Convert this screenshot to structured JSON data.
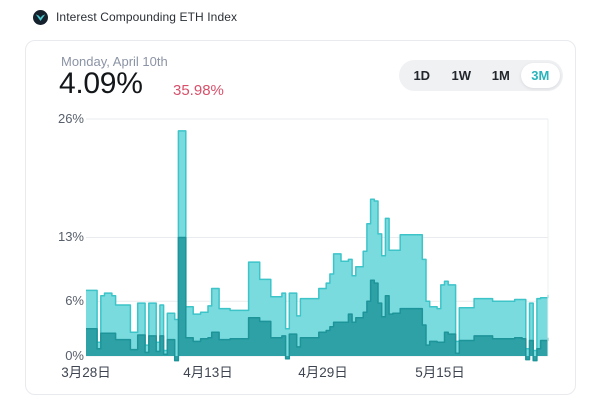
{
  "header": {
    "title": "Interest Compounding ETH Index",
    "logo_icon": "token-logo-dark-circle-teal-wings"
  },
  "card": {
    "date_label": "Monday, April 10th",
    "value": "4.09%",
    "change": "35.98%",
    "range_selector": {
      "buttons": [
        {
          "label": "1D",
          "active": false
        },
        {
          "label": "1W",
          "active": false
        },
        {
          "label": "1M",
          "active": false
        },
        {
          "label": "3M",
          "active": true
        }
      ]
    }
  },
  "colors": {
    "accent_teal": "#29b3ba",
    "change_red": "#d8506a",
    "logo_bg": "#15222e",
    "logo_glyph": "#4cc7d0"
  },
  "chart_data": {
    "type": "area",
    "title": "Interest Compounding ETH Index APY, 3M range",
    "x_ticks": [
      "3月28日",
      "4月13日",
      "4月29日",
      "5月15日"
    ],
    "x_tick_days": [
      0,
      16,
      32,
      48
    ],
    "x_range_days": 62,
    "y_ticks": [
      "26%",
      "13%",
      "6%",
      "0%"
    ],
    "ylim": [
      0,
      26
    ],
    "gridlines": [
      26,
      13,
      6,
      0
    ],
    "grid_color": "#e9ebee",
    "edge_color": "#edeff1",
    "legend": "none",
    "series": [
      {
        "name": "apy-total",
        "fill": "#79dbde",
        "stroke": "#3cc4c9",
        "values": [
          7.2,
          7.2,
          7.2,
          1.5,
          6.6,
          6.9,
          6.9,
          6.6,
          5.6,
          5.6,
          5.6,
          5.6,
          2.6,
          2.6,
          5.8,
          5.8,
          1.2,
          5.8,
          5.8,
          1.5,
          5.6,
          0.6,
          4.7,
          4.7,
          4.0,
          24.7,
          24.7,
          5.4,
          5.4,
          4.6,
          4.6,
          4.8,
          4.8,
          5.5,
          7.4,
          7.4,
          5.2,
          5.2,
          5.2,
          5.0,
          5.0,
          5.0,
          5.0,
          5.0,
          10.3,
          10.3,
          10.3,
          8.4,
          8.4,
          8.4,
          6.5,
          6.5,
          6.5,
          6.9,
          3.0,
          6.9,
          6.9,
          4.4,
          6.3,
          6.3,
          6.3,
          6.3,
          6.3,
          7.4,
          7.4,
          8.0,
          9.0,
          11.2,
          11.2,
          10.4,
          10.4,
          10.6,
          8.8,
          9.8,
          9.8,
          11.5,
          14.5,
          17.2,
          17.0,
          13.4,
          11.0,
          15.1,
          11.6,
          11.6,
          11.6,
          13.3,
          13.3,
          13.3,
          13.3,
          13.3,
          13.3,
          10.6,
          6.0,
          5.4,
          5.4,
          5.2,
          7.8,
          8.2,
          7.8,
          7.8,
          1.6,
          5.3,
          5.3,
          5.3,
          5.3,
          6.3,
          6.3,
          6.3,
          6.3,
          6.3,
          6.0,
          6.0,
          6.0,
          6.0,
          6.0,
          6.0,
          6.2,
          6.2,
          6.2,
          0.8,
          5.8,
          0.6,
          6.3,
          6.4,
          6.4,
          6.7
        ]
      },
      {
        "name": "apy-base",
        "fill": "#2da1a5",
        "stroke": "#1d9499",
        "values": [
          3.0,
          3.0,
          3.0,
          0.8,
          2.5,
          2.5,
          2.5,
          2.5,
          1.8,
          1.8,
          1.8,
          1.8,
          0.7,
          0.7,
          2.3,
          2.3,
          0.4,
          2.2,
          2.2,
          0.5,
          2.2,
          0.2,
          1.8,
          1.8,
          -0.5,
          13.0,
          13.0,
          2.0,
          2.0,
          1.6,
          1.6,
          1.9,
          1.9,
          2.0,
          2.6,
          2.6,
          1.8,
          1.8,
          1.8,
          1.9,
          1.9,
          1.9,
          1.9,
          1.9,
          4.2,
          4.2,
          4.2,
          3.8,
          3.8,
          3.8,
          2.0,
          2.0,
          2.0,
          2.2,
          -0.3,
          2.4,
          2.4,
          1.0,
          2.0,
          2.0,
          2.0,
          2.0,
          2.0,
          2.6,
          2.6,
          2.8,
          3.2,
          3.7,
          3.7,
          3.7,
          3.7,
          4.6,
          3.7,
          4.2,
          4.2,
          4.8,
          6.0,
          8.3,
          8.0,
          5.8,
          4.3,
          6.6,
          4.6,
          4.7,
          4.7,
          5.2,
          5.2,
          5.2,
          5.2,
          5.2,
          5.2,
          3.4,
          1.2,
          1.6,
          1.6,
          1.5,
          1.5,
          2.6,
          2.4,
          2.4,
          0.3,
          1.7,
          1.7,
          1.7,
          1.7,
          2.2,
          2.2,
          2.2,
          2.2,
          2.2,
          1.9,
          1.9,
          1.9,
          1.9,
          1.9,
          1.9,
          2.0,
          2.0,
          1.9,
          -0.4,
          1.7,
          -0.5,
          0.8,
          1.7,
          1.7,
          2.0
        ]
      }
    ]
  }
}
